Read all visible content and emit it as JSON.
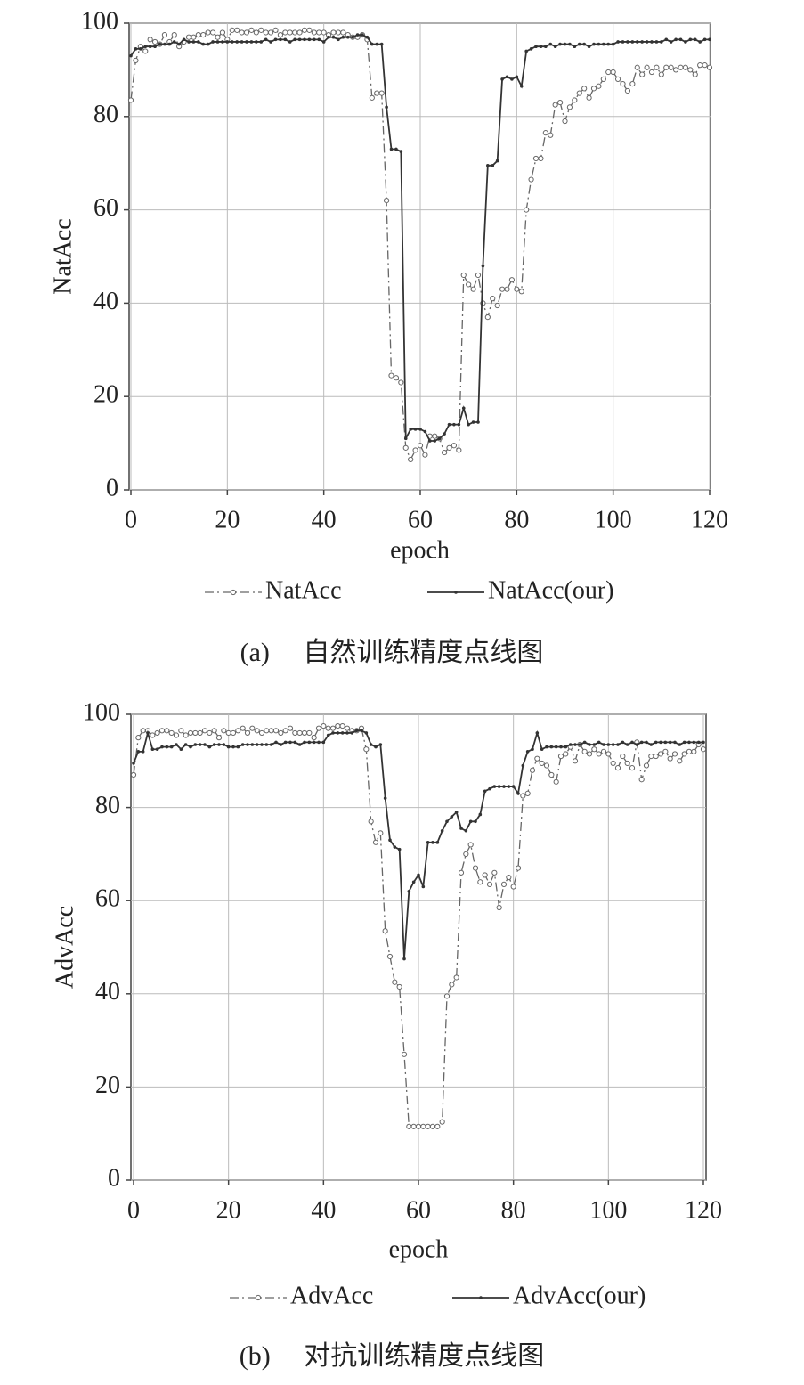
{
  "chart_data": [
    {
      "type": "line",
      "title": "(a)　 自然训练精度点线图",
      "xlabel": "epoch",
      "ylabel": "NatAcc",
      "x": [
        0,
        1,
        2,
        3,
        4,
        5,
        6,
        7,
        8,
        9,
        10,
        11,
        12,
        13,
        14,
        15,
        16,
        17,
        18,
        19,
        20,
        21,
        22,
        23,
        24,
        25,
        26,
        27,
        28,
        29,
        30,
        31,
        32,
        33,
        34,
        35,
        36,
        37,
        38,
        39,
        40,
        41,
        42,
        43,
        44,
        45,
        46,
        47,
        48,
        49,
        50,
        51,
        52,
        53,
        54,
        55,
        56,
        57,
        58,
        59,
        60,
        61,
        62,
        63,
        64,
        65,
        66,
        67,
        68,
        69,
        70,
        71,
        72,
        73,
        74,
        75,
        76,
        77,
        78,
        79,
        80,
        81,
        82,
        83,
        84,
        85,
        86,
        87,
        88,
        89,
        90,
        91,
        92,
        93,
        94,
        95,
        96,
        97,
        98,
        99,
        100,
        101,
        102,
        103,
        104,
        105,
        106,
        107,
        108,
        109,
        110,
        111,
        112,
        113,
        114,
        115,
        116,
        117,
        118,
        119,
        120
      ],
      "series": [
        {
          "name": "NatAcc",
          "color": "#666666",
          "linestyle": "dashdot",
          "marker": "circle",
          "values": [
            83.5,
            92,
            95,
            94,
            96.5,
            96,
            95.5,
            97.5,
            96,
            97.5,
            95,
            96,
            97,
            97,
            97.5,
            97.5,
            98,
            98,
            97,
            98,
            96.5,
            98.5,
            98.5,
            98,
            98,
            98.5,
            98,
            98.5,
            98,
            98,
            98.5,
            97.5,
            98,
            98,
            98,
            98,
            98.5,
            98.5,
            98,
            98,
            98,
            97.5,
            98,
            98,
            98,
            97.5,
            97,
            97,
            97.5,
            96.5,
            84,
            85,
            85,
            62,
            24.5,
            24,
            23,
            9,
            6.5,
            8.5,
            9.5,
            7.5,
            11.5,
            11.5,
            11,
            8,
            9,
            9.5,
            8.5,
            46,
            44,
            43,
            46,
            40,
            37,
            41,
            39.5,
            43,
            43,
            45,
            43,
            42.5,
            60,
            66.5,
            71,
            71,
            76.5,
            76,
            82.5,
            83,
            79,
            82,
            83.5,
            85,
            86,
            84,
            86,
            86.5,
            88,
            89.5,
            89.5,
            88,
            87,
            85.5,
            87,
            90.5,
            89,
            90.5,
            89.5,
            90.5,
            89,
            90.5,
            90.5,
            90,
            90.5,
            90.5,
            90,
            89,
            91,
            91,
            90.5
          ]
        },
        {
          "name": "NatAcc(our)",
          "color": "#333333",
          "linestyle": "solid",
          "marker": "dot",
          "values": [
            93,
            94.5,
            94.5,
            95,
            95,
            95,
            95.5,
            95.5,
            95.5,
            96,
            95.5,
            96.5,
            96,
            96,
            96,
            95.5,
            95.5,
            96,
            96,
            96,
            96,
            96,
            96,
            96,
            96,
            96,
            96,
            96,
            96.5,
            96,
            96.5,
            96.5,
            96.5,
            96,
            96.5,
            96.5,
            96.5,
            96.5,
            96.5,
            96.5,
            96,
            97,
            97,
            96.5,
            97,
            97,
            97,
            97.5,
            97.5,
            97,
            95.5,
            95.5,
            95.5,
            82,
            73,
            73,
            72.5,
            11,
            13,
            13,
            13,
            12.5,
            10.5,
            10.5,
            11,
            12,
            14,
            14,
            14,
            17.5,
            14,
            14.5,
            14.5,
            48,
            69.5,
            69.5,
            70.5,
            88,
            88.5,
            88,
            88.5,
            86.5,
            94,
            94.5,
            95,
            95,
            95,
            95.5,
            95,
            95.5,
            95.5,
            95.5,
            95,
            95.5,
            95.5,
            95,
            95.5,
            95.5,
            95.5,
            95.5,
            95.5,
            96,
            96,
            96,
            96,
            96,
            96,
            96,
            96,
            96,
            96,
            96.5,
            96,
            96.5,
            96.5,
            96,
            96.5,
            96.5,
            96,
            96.5,
            96.5
          ]
        }
      ],
      "xlim": [
        0,
        120
      ],
      "ylim": [
        0,
        100
      ],
      "xticks": [
        0,
        20,
        40,
        60,
        80,
        100,
        120
      ],
      "yticks": [
        0,
        20,
        40,
        60,
        80,
        100
      ],
      "grid": true
    },
    {
      "type": "line",
      "title": "(b)　 对抗训练精度点线图",
      "xlabel": "epoch",
      "ylabel": "AdvAcc",
      "x": [
        0,
        1,
        2,
        3,
        4,
        5,
        6,
        7,
        8,
        9,
        10,
        11,
        12,
        13,
        14,
        15,
        16,
        17,
        18,
        19,
        20,
        21,
        22,
        23,
        24,
        25,
        26,
        27,
        28,
        29,
        30,
        31,
        32,
        33,
        34,
        35,
        36,
        37,
        38,
        39,
        40,
        41,
        42,
        43,
        44,
        45,
        46,
        47,
        48,
        49,
        50,
        51,
        52,
        53,
        54,
        55,
        56,
        57,
        58,
        59,
        60,
        61,
        62,
        63,
        64,
        65,
        66,
        67,
        68,
        69,
        70,
        71,
        72,
        73,
        74,
        75,
        76,
        77,
        78,
        79,
        80,
        81,
        82,
        83,
        84,
        85,
        86,
        87,
        88,
        89,
        90,
        91,
        92,
        93,
        94,
        95,
        96,
        97,
        98,
        99,
        100,
        101,
        102,
        103,
        104,
        105,
        106,
        107,
        108,
        109,
        110,
        111,
        112,
        113,
        114,
        115,
        116,
        117,
        118,
        119,
        120
      ],
      "series": [
        {
          "name": "AdvAcc",
          "color": "#666666",
          "linestyle": "dashdot",
          "marker": "circle",
          "values": [
            87,
            95,
            96.5,
            96.5,
            95.5,
            96,
            96.5,
            96.5,
            96,
            95.5,
            96.5,
            95.5,
            96,
            96,
            96,
            96.5,
            96,
            96.5,
            95,
            96.5,
            96,
            96,
            96.5,
            97,
            96,
            97,
            96.5,
            96,
            96.5,
            96.5,
            96.5,
            96,
            96.5,
            97,
            96,
            96,
            96,
            96,
            95,
            97,
            97.5,
            97,
            97,
            97.5,
            97.5,
            97,
            96.5,
            96.5,
            97,
            92.5,
            77,
            72.5,
            74.5,
            53.5,
            48,
            42.5,
            41.5,
            27,
            11.5,
            11.5,
            11.5,
            11.5,
            11.5,
            11.5,
            11.5,
            12.5,
            39.5,
            42,
            43.5,
            66,
            70,
            72,
            67,
            64,
            65.5,
            63.5,
            66,
            58.5,
            63.5,
            65,
            63,
            67,
            82.5,
            83,
            88,
            90.5,
            89.5,
            89,
            87,
            85.5,
            91,
            91.5,
            93,
            90,
            93.5,
            92,
            91.5,
            92.5,
            91.5,
            92,
            91.5,
            89.5,
            88.5,
            91,
            89.5,
            88.5,
            94,
            86,
            89,
            91,
            91,
            91.5,
            92,
            90.5,
            91.5,
            90,
            91.5,
            92,
            92,
            93.5,
            92.5
          ]
        },
        {
          "name": "AdvAcc(our)",
          "color": "#333333",
          "linestyle": "solid",
          "marker": "dot",
          "values": [
            89.5,
            92,
            92,
            96,
            92.5,
            92.5,
            93,
            93,
            93,
            93.5,
            92.5,
            93.5,
            93,
            93.5,
            93.5,
            93.5,
            93,
            93.5,
            93.5,
            93.5,
            93,
            93,
            93,
            93.5,
            93.5,
            93.5,
            93.5,
            93.5,
            93.5,
            93.5,
            94,
            93.5,
            94,
            94,
            94,
            93.5,
            94,
            94,
            94,
            94,
            94,
            95.5,
            96,
            96,
            96,
            96,
            96,
            96.5,
            96.5,
            96,
            93.5,
            93,
            93.5,
            82,
            73,
            71.5,
            71,
            47.5,
            62,
            64,
            65.5,
            63,
            72.5,
            72.5,
            72.5,
            75,
            77,
            78,
            79,
            75.5,
            75,
            77,
            77,
            78.5,
            83.5,
            84,
            84.5,
            84.5,
            84.5,
            84.5,
            84.5,
            83,
            89,
            92,
            92.5,
            96,
            92.5,
            93,
            93,
            93,
            93,
            93,
            93.5,
            93.5,
            93.5,
            94,
            93.5,
            93.5,
            94,
            93.5,
            93.5,
            93.5,
            93.5,
            94,
            93.5,
            94,
            93.5,
            94,
            94,
            93.5,
            94,
            94,
            94,
            94,
            94,
            93.5,
            94,
            94,
            94,
            94,
            94
          ]
        }
      ],
      "xlim": [
        0,
        120
      ],
      "ylim": [
        0,
        100
      ],
      "xticks": [
        0,
        20,
        40,
        60,
        80,
        100,
        120
      ],
      "yticks": [
        0,
        20,
        40,
        60,
        80,
        100
      ],
      "grid": true
    }
  ]
}
